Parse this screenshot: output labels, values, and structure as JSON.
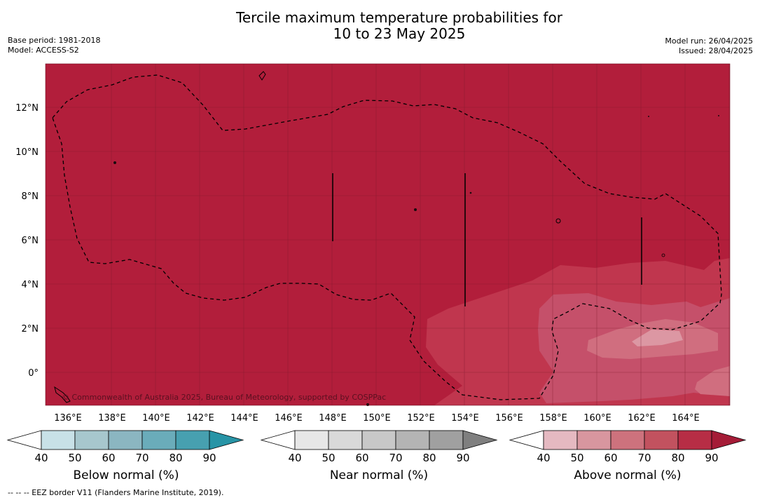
{
  "title": {
    "line1": "Tercile maximum temperature probabilities for",
    "line2": "10 to 23 May 2025"
  },
  "meta_left": {
    "base_period": "Base period: 1981-2018",
    "model": "Model: ACCESS-S2"
  },
  "meta_right": {
    "model_run": "Model run: 26/04/2025",
    "issued": "Issued: 28/04/2025"
  },
  "map": {
    "background_color": "#b21e3b",
    "lon_ticks": [
      "136°E",
      "138°E",
      "140°E",
      "142°E",
      "144°E",
      "146°E",
      "148°E",
      "150°E",
      "152°E",
      "154°E",
      "156°E",
      "158°E",
      "160°E",
      "162°E",
      "164°E"
    ],
    "lat_ticks": [
      "12°N",
      "10°N",
      "8°N",
      "6°N",
      "4°N",
      "2°N",
      "0°"
    ],
    "copyright": "© Commonwealth of Australia 2025, Bureau of Meteorology, supported by COSPPac"
  },
  "colorbars": [
    {
      "name": "below-normal",
      "label": "Below normal (%)",
      "ticks": [
        "40",
        "50",
        "60",
        "70",
        "80",
        "90"
      ],
      "colors": [
        "#ffffff",
        "#c8e1e7",
        "#a7c7cd",
        "#8bb6c1",
        "#6aacba",
        "#47a0b0",
        "#2794a6"
      ]
    },
    {
      "name": "near-normal",
      "label": "Near normal (%)",
      "ticks": [
        "40",
        "50",
        "60",
        "70",
        "80",
        "90"
      ],
      "colors": [
        "#ffffff",
        "#e7e7e7",
        "#d9d9d9",
        "#c8c8c8",
        "#b4b4b4",
        "#a0a0a0",
        "#7f7f7f"
      ]
    },
    {
      "name": "above-normal",
      "label": "Above normal (%)",
      "ticks": [
        "40",
        "50",
        "60",
        "70",
        "80",
        "90"
      ],
      "colors": [
        "#ffffff",
        "#e5b9c1",
        "#d8969f",
        "#cd727d",
        "#c2525f",
        "#b72d45",
        "#a51c37"
      ]
    }
  ],
  "footnote": "--  --  -- EEZ border V11 (Flanders Marine Institute, 2019)."
}
